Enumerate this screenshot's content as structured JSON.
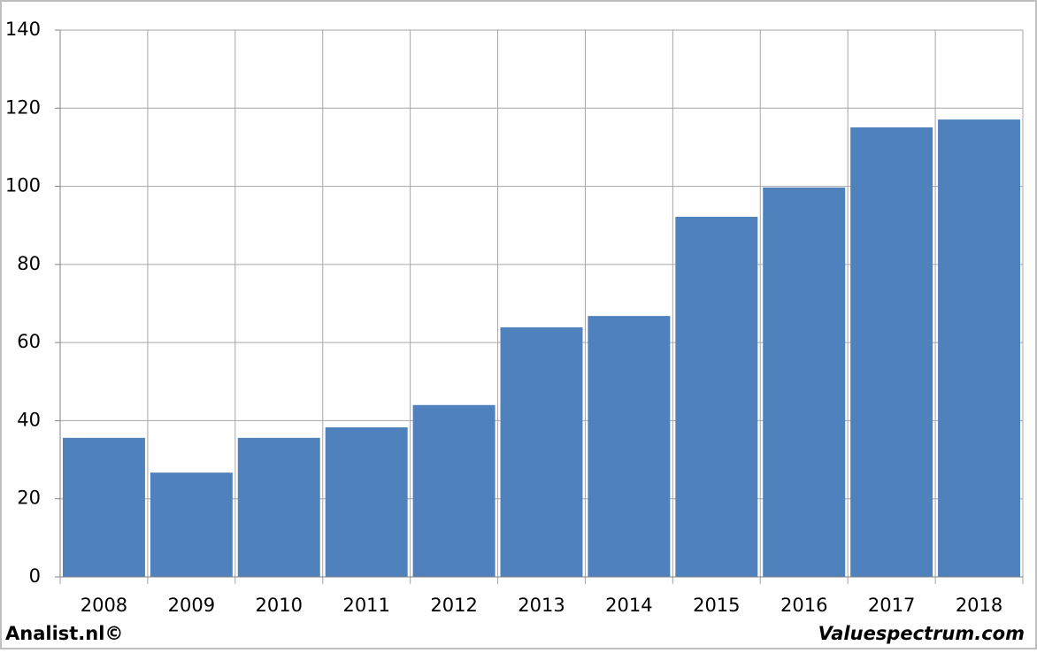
{
  "chart_data": {
    "type": "bar",
    "categories": [
      "2008",
      "2009",
      "2010",
      "2011",
      "2012",
      "2013",
      "2014",
      "2015",
      "2016",
      "2017",
      "2018"
    ],
    "values": [
      35.6,
      26.7,
      35.6,
      38.3,
      44,
      63.9,
      66.8,
      92.2,
      99.7,
      115.1,
      117.1
    ],
    "color": "#4f81bd",
    "ylim": [
      0,
      140
    ],
    "yticks": [
      0,
      20,
      40,
      60,
      80,
      100,
      120,
      140
    ],
    "grid": true,
    "credits": [
      "Analist.nl©",
      "Valuespectrum.com"
    ]
  }
}
